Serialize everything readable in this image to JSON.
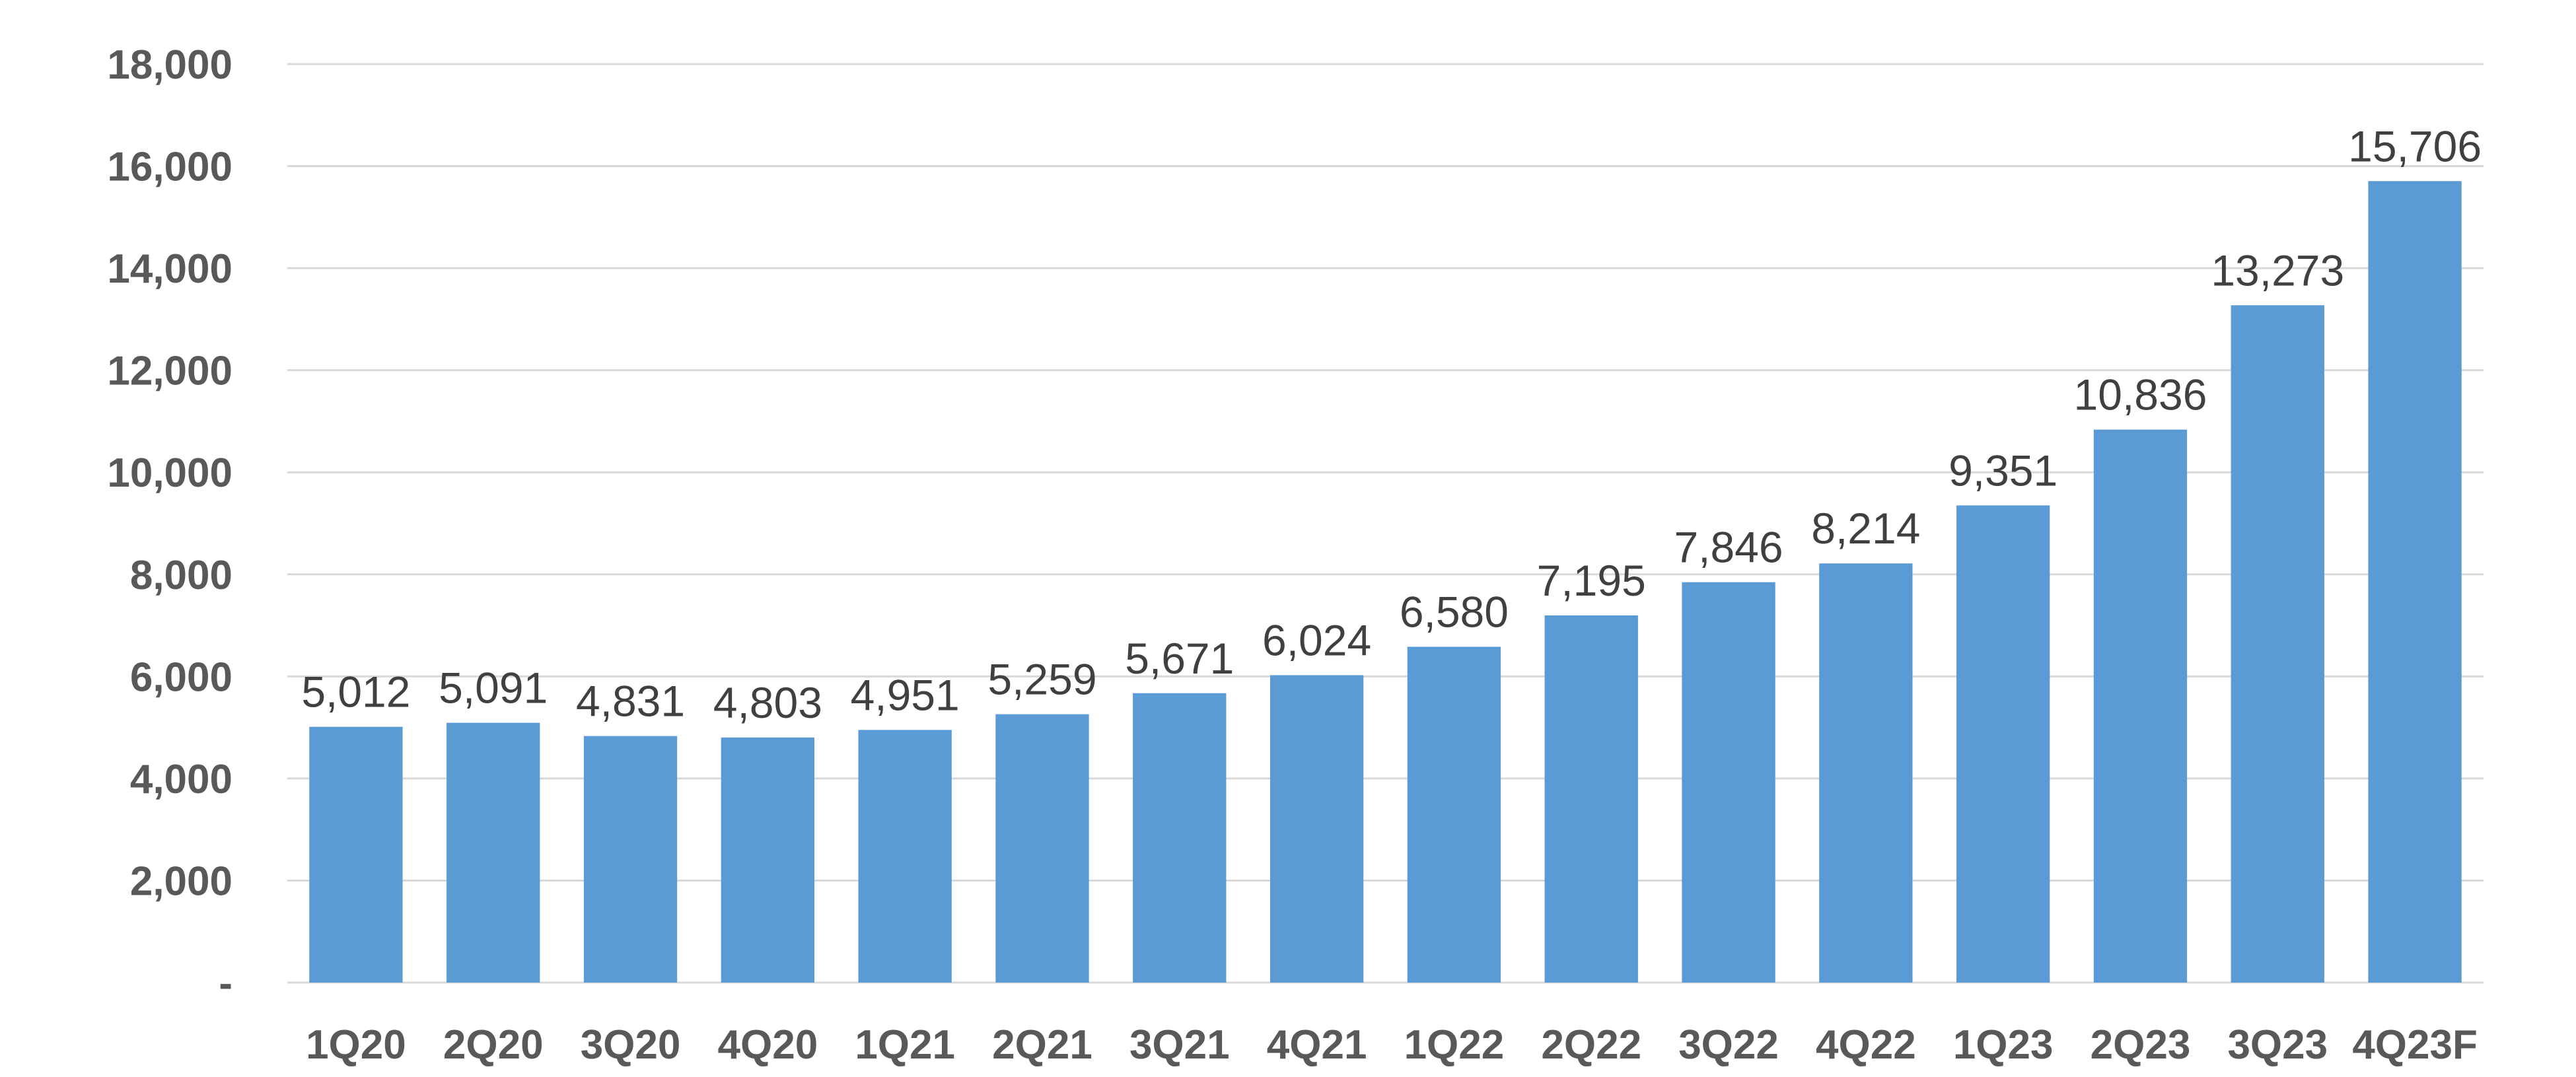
{
  "chart_data": {
    "type": "bar",
    "title": "",
    "xlabel": "",
    "ylabel": "",
    "categories": [
      "1Q20",
      "2Q20",
      "3Q20",
      "4Q20",
      "1Q21",
      "2Q21",
      "3Q21",
      "4Q21",
      "1Q22",
      "2Q22",
      "3Q22",
      "4Q22",
      "1Q23",
      "2Q23",
      "3Q23",
      "4Q23F"
    ],
    "values": [
      5012,
      5091,
      4831,
      4803,
      4951,
      5259,
      5671,
      6024,
      6580,
      7195,
      7846,
      8214,
      9351,
      10836,
      13273,
      15706
    ],
    "data_labels": [
      "5,012",
      "5,091",
      "4,831",
      "4,803",
      "4,951",
      "5,259",
      "5,671",
      "6,024",
      "6,580",
      "7,195",
      "7,846",
      "8,214",
      "9,351",
      "10,836",
      "13,273",
      "15,706"
    ],
    "ylim": [
      0,
      18000
    ],
    "yticks": [
      0,
      2000,
      4000,
      6000,
      8000,
      10000,
      12000,
      14000,
      16000,
      18000
    ],
    "ytick_labels": [
      "-",
      "2,000",
      "4,000",
      "6,000",
      "8,000",
      "10,000",
      "12,000",
      "14,000",
      "16,000",
      "18,000"
    ],
    "grid": true,
    "legend": "none",
    "colors": {
      "bar": "#5b9bd5",
      "grid": "#d9d9d9",
      "axis_text": "#595959",
      "label_text": "#404040"
    }
  }
}
